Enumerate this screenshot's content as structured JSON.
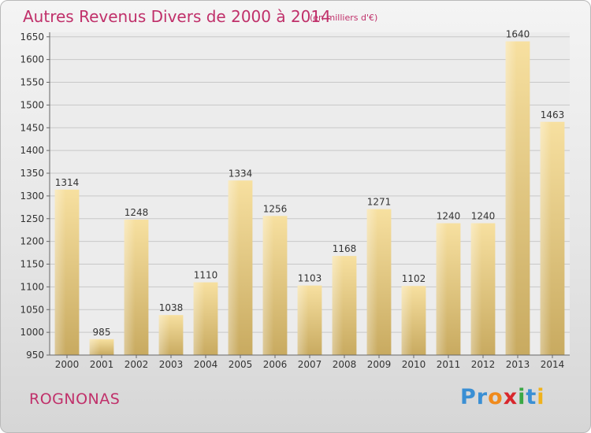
{
  "chart_data": {
    "type": "bar",
    "title": "Autres Revenus Divers de 2000 à 2014",
    "unit": "(en milliers d'€)",
    "categories": [
      "2000",
      "2001",
      "2002",
      "2003",
      "2004",
      "2005",
      "2006",
      "2007",
      "2008",
      "2009",
      "2010",
      "2011",
      "2012",
      "2013",
      "2014"
    ],
    "values": [
      1314,
      985,
      1248,
      1038,
      1110,
      1334,
      1256,
      1103,
      1168,
      1271,
      1102,
      1240,
      1240,
      1640,
      1463
    ],
    "ylim": [
      950,
      1660
    ],
    "yticks": [
      950,
      1000,
      1050,
      1100,
      1150,
      1200,
      1250,
      1300,
      1350,
      1400,
      1450,
      1500,
      1550,
      1600,
      1650
    ],
    "grid": true,
    "bar_color": "#e8c878"
  },
  "footer": {
    "commune": "ROGNONAS",
    "logo": {
      "letters": [
        "P",
        "r",
        "o",
        "x",
        "i",
        "t",
        "i"
      ],
      "colors": [
        "#3a8fd4",
        "#3a8fd4",
        "#f08a1c",
        "#d8262c",
        "#3aa845",
        "#3a8fd4",
        "#f0b21c"
      ]
    }
  }
}
